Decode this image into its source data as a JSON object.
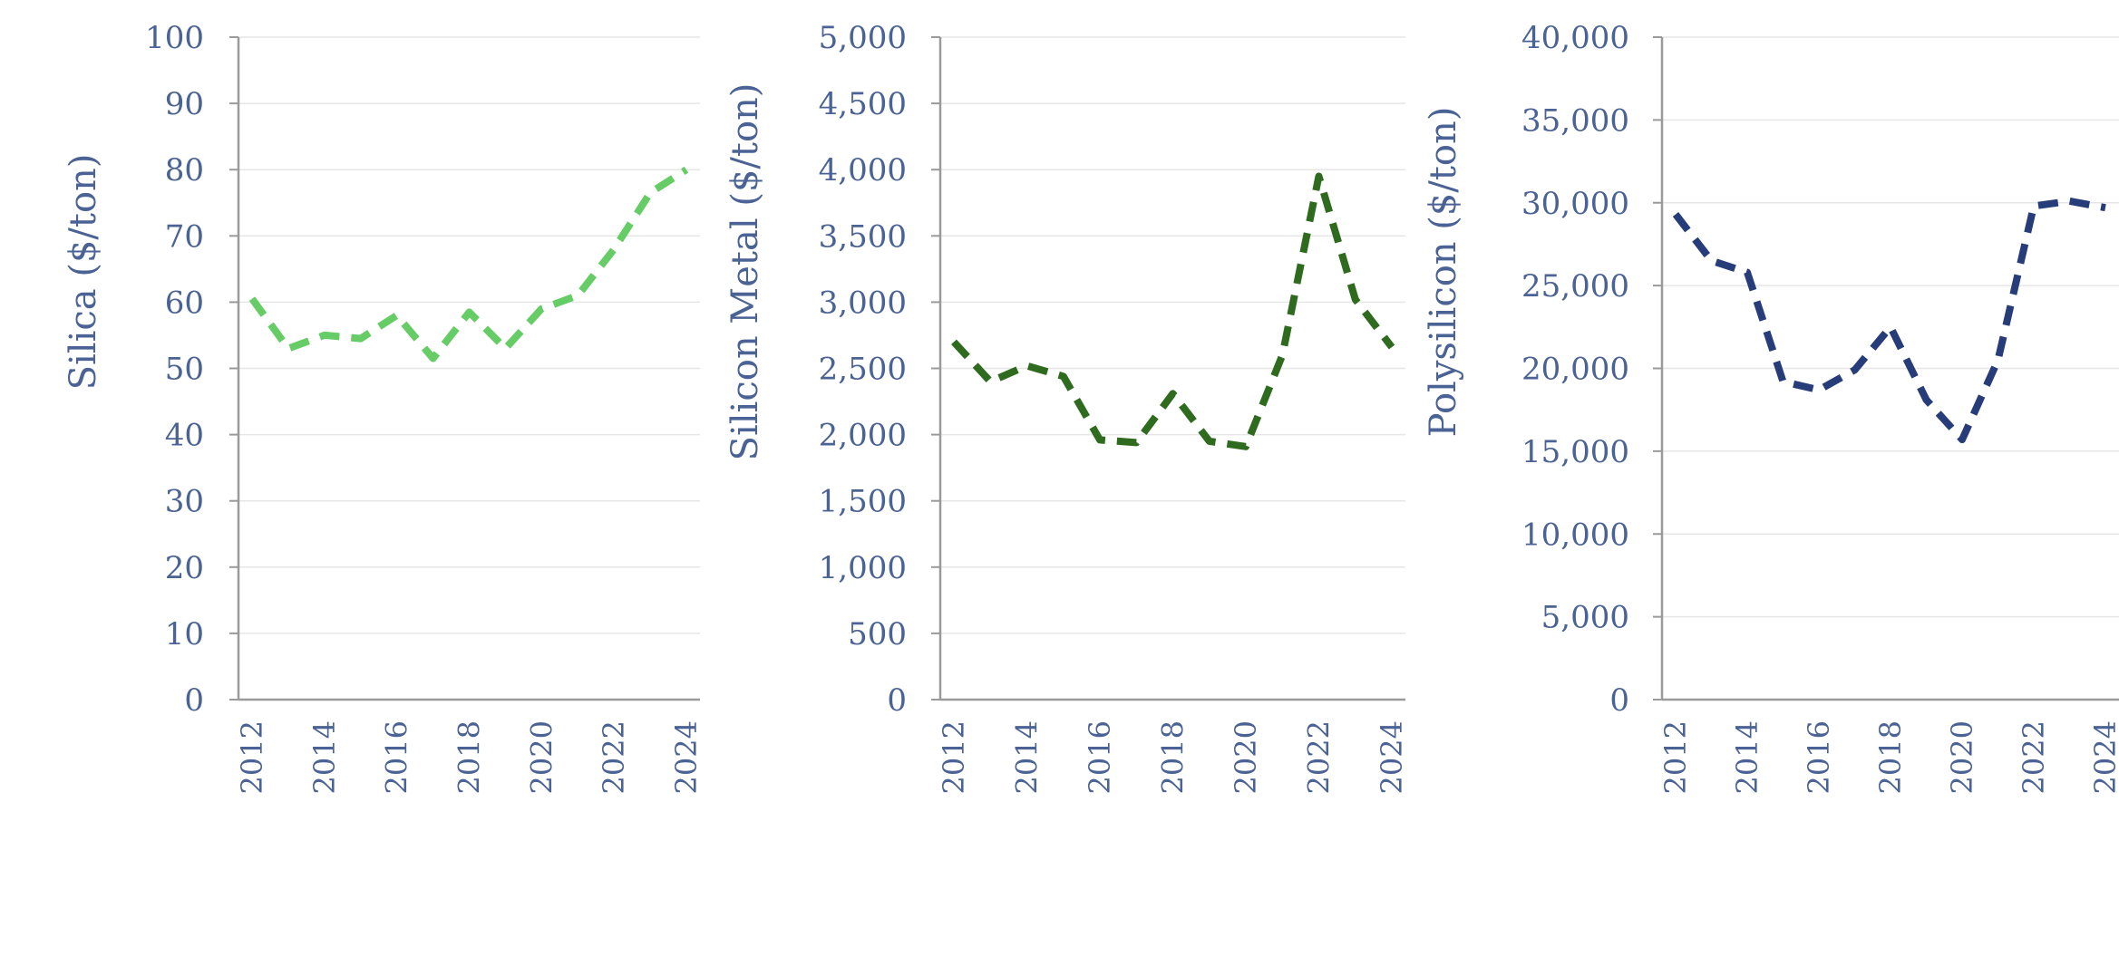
{
  "chart_data": [
    {
      "type": "line",
      "title": "",
      "xlabel": "",
      "ylabel": "Silica ($/ton)",
      "x": [
        2012,
        2013,
        2014,
        2015,
        2016,
        2017,
        2018,
        2019,
        2020,
        2021,
        2022,
        2023,
        2024
      ],
      "series": [
        {
          "name": "Silica",
          "color": "#66cc66",
          "values": [
            60.5,
            53,
            55,
            54.5,
            58,
            51.5,
            58.5,
            53,
            59,
            61,
            68,
            76.5,
            80
          ]
        }
      ],
      "ylim": [
        0,
        100
      ],
      "yticks": [
        0,
        10,
        20,
        30,
        40,
        50,
        60,
        70,
        80,
        90,
        100
      ],
      "ytick_labels": [
        "0",
        "10",
        "20",
        "30",
        "40",
        "50",
        "60",
        "70",
        "80",
        "90",
        "100"
      ],
      "xticks": [
        2012,
        2014,
        2016,
        2018,
        2020,
        2022,
        2024
      ],
      "xtick_labels": [
        "2012",
        "2014",
        "2016",
        "2018",
        "2020",
        "2022",
        "2024"
      ],
      "grid": true,
      "line_style": "dashed"
    },
    {
      "type": "line",
      "title": "",
      "xlabel": "",
      "ylabel": "Silicon Metal ($/ton)",
      "x": [
        2012,
        2013,
        2014,
        2015,
        2016,
        2017,
        2018,
        2019,
        2020,
        2021,
        2022,
        2023,
        2024
      ],
      "series": [
        {
          "name": "Silicon Metal",
          "color": "#2e6b1f",
          "values": [
            2700,
            2400,
            2520,
            2440,
            1960,
            1940,
            2310,
            1950,
            1910,
            2600,
            3950,
            3020,
            2660
          ]
        }
      ],
      "ylim": [
        0,
        5000
      ],
      "yticks": [
        0,
        500,
        1000,
        1500,
        2000,
        2500,
        3000,
        3500,
        4000,
        4500,
        5000
      ],
      "ytick_labels": [
        "0",
        "500",
        "1,000",
        "1,500",
        "2,000",
        "2,500",
        "3,000",
        "3,500",
        "4,000",
        "4,500",
        "5,000"
      ],
      "xticks": [
        2012,
        2014,
        2016,
        2018,
        2020,
        2022,
        2024
      ],
      "xtick_labels": [
        "2012",
        "2014",
        "2016",
        "2018",
        "2020",
        "2022",
        "2024"
      ],
      "grid": true,
      "line_style": "dashed"
    },
    {
      "type": "line",
      "title": "",
      "xlabel": "",
      "ylabel": "Polysilicon ($/ton)",
      "x": [
        2012,
        2013,
        2014,
        2015,
        2016,
        2017,
        2018,
        2019,
        2020,
        2021,
        2022,
        2023,
        2024
      ],
      "series": [
        {
          "name": "Polysilicon",
          "color": "#273d7a",
          "values": [
            29300,
            26500,
            25800,
            19200,
            18700,
            19900,
            22500,
            18100,
            15700,
            20500,
            29800,
            30100,
            29700
          ]
        }
      ],
      "ylim": [
        0,
        40000
      ],
      "yticks": [
        0,
        5000,
        10000,
        15000,
        20000,
        25000,
        30000,
        35000,
        40000
      ],
      "ytick_labels": [
        "0",
        "5,000",
        "10,000",
        "15,000",
        "20,000",
        "25,000",
        "30,000",
        "35,000",
        "40,000"
      ],
      "xticks": [
        2012,
        2014,
        2016,
        2018,
        2020,
        2022,
        2024
      ],
      "xtick_labels": [
        "2012",
        "2014",
        "2016",
        "2018",
        "2020",
        "2022",
        "2024"
      ],
      "grid": true,
      "line_style": "dashed"
    }
  ]
}
